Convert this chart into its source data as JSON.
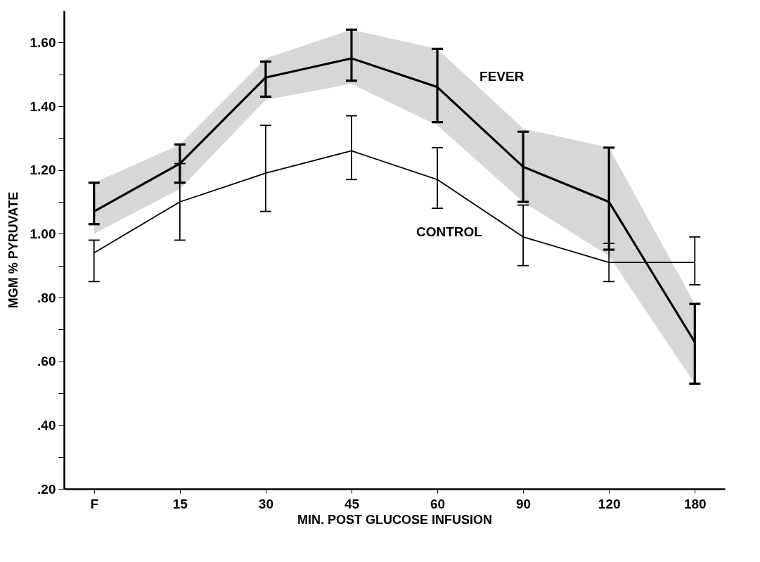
{
  "chart_data": {
    "type": "line",
    "xlabel": "MIN. POST GLUCOSE INFUSION",
    "ylabel": "MGM % PYRUVATE",
    "categories": [
      "F",
      "15",
      "30",
      "45",
      "60",
      "90",
      "120",
      "180"
    ],
    "series": [
      {
        "name": "FEVER",
        "color": "#000000",
        "values": [
          1.07,
          1.22,
          1.49,
          1.55,
          1.46,
          1.21,
          1.1,
          0.66
        ],
        "errors": [
          [
            1.03,
            1.16
          ],
          [
            1.16,
            1.28
          ],
          [
            1.43,
            1.54
          ],
          [
            1.48,
            1.64
          ],
          [
            1.35,
            1.58
          ],
          [
            1.1,
            1.32
          ],
          [
            0.95,
            1.27
          ],
          [
            0.53,
            0.78
          ]
        ],
        "lower": [
          1.0,
          1.14,
          1.42,
          1.47,
          1.34,
          1.1,
          0.93,
          0.53
        ],
        "upper": [
          1.16,
          1.28,
          1.55,
          1.64,
          1.58,
          1.33,
          1.27,
          0.78
        ]
      },
      {
        "name": "CONTROL",
        "color": "#000000",
        "values": [
          0.94,
          1.1,
          1.19,
          1.26,
          1.17,
          0.99,
          0.91,
          0.91
        ],
        "errors": [
          [
            0.85,
            0.98
          ],
          [
            0.98,
            1.22
          ],
          [
            1.07,
            1.34
          ],
          [
            1.17,
            1.37
          ],
          [
            1.08,
            1.27
          ],
          [
            0.9,
            1.09
          ],
          [
            0.85,
            0.97
          ],
          [
            0.84,
            0.99
          ]
        ]
      }
    ],
    "ylim": [
      0.2,
      1.7
    ],
    "yticks": [
      {
        "value": 0.2,
        "label": ".20"
      },
      {
        "value": 0.3,
        "label": null
      },
      {
        "value": 0.4,
        "label": ".40"
      },
      {
        "value": 0.5,
        "label": null
      },
      {
        "value": 0.6,
        "label": ".60"
      },
      {
        "value": 0.7,
        "label": null
      },
      {
        "value": 0.8,
        "label": ".80"
      },
      {
        "value": 0.9,
        "label": null
      },
      {
        "value": 1.0,
        "label": "1.00"
      },
      {
        "value": 1.1,
        "label": null
      },
      {
        "value": 1.2,
        "label": "1.20"
      },
      {
        "value": 1.3,
        "label": null
      },
      {
        "value": 1.4,
        "label": "1.40"
      },
      {
        "value": 1.5,
        "label": null
      },
      {
        "value": 1.6,
        "label": "1.60"
      }
    ],
    "grid": false,
    "legend": false,
    "marker": "none",
    "line_style": "solid"
  }
}
